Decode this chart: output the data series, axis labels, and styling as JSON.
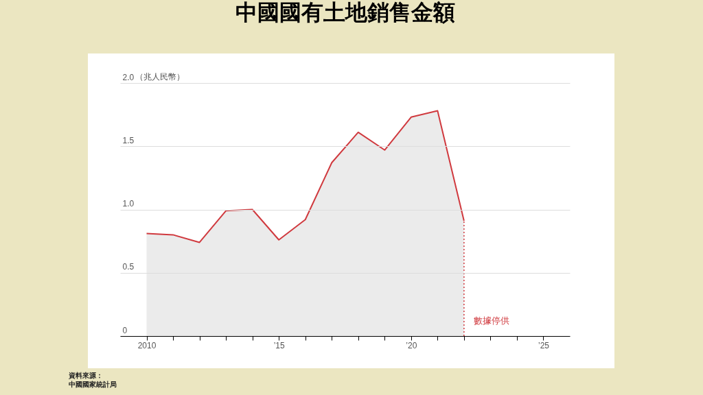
{
  "chart_data": {
    "type": "area",
    "title": "中國國有土地銷售金額",
    "ylabel": "（兆人民幣）",
    "x": [
      2010,
      2011,
      2012,
      2013,
      2014,
      2015,
      2016,
      2017,
      2018,
      2019,
      2020,
      2021,
      2022
    ],
    "series": [
      {
        "color": "#d0393e",
        "values": [
          0.81,
          0.8,
          0.74,
          0.99,
          1.0,
          0.76,
          0.92,
          1.37,
          1.61,
          1.47,
          1.73,
          1.78,
          0.91
        ]
      }
    ],
    "xlim": [
      2009,
      2026
    ],
    "xticks": [
      {
        "value": 2010,
        "label": "2010"
      },
      {
        "value": 2011,
        "label": null
      },
      {
        "value": 2012,
        "label": null
      },
      {
        "value": 2013,
        "label": null
      },
      {
        "value": 2014,
        "label": null
      },
      {
        "value": 2015,
        "label": "’15"
      },
      {
        "value": 2016,
        "label": null
      },
      {
        "value": 2017,
        "label": null
      },
      {
        "value": 2018,
        "label": null
      },
      {
        "value": 2019,
        "label": null
      },
      {
        "value": 2020,
        "label": "’20"
      },
      {
        "value": 2021,
        "label": null
      },
      {
        "value": 2022,
        "label": null
      },
      {
        "value": 2023,
        "label": null
      },
      {
        "value": 2024,
        "label": null
      },
      {
        "value": 2025,
        "label": "’25"
      }
    ],
    "ylim": [
      0,
      2.0
    ],
    "yticks": [
      0,
      {
        "value": 0.5,
        "label": "0.5"
      },
      {
        "value": 1.0,
        "label": "1.0"
      },
      {
        "value": 1.5,
        "label": "1.5"
      },
      {
        "value": 2.0,
        "label": "2.0"
      }
    ],
    "grid": "y",
    "ref_lines": [
      {
        "axis": "x",
        "value": 2022,
        "label": "數據停供",
        "color": "#d0393e",
        "line_style": "dotted"
      }
    ],
    "annotations": [
      "資料來源：",
      "中國國家統計局"
    ]
  }
}
